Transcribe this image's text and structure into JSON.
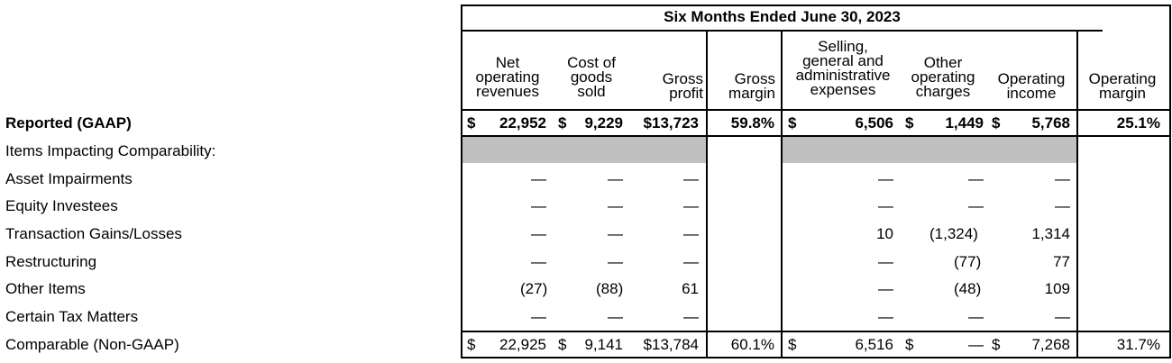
{
  "title": "Six Months Ended June 30, 2023",
  "columns": {
    "net_operating_revenues": [
      "Net",
      "operating",
      "revenues"
    ],
    "cost_of_goods_sold": [
      "Cost of",
      "goods",
      "sold"
    ],
    "gross_profit": [
      "Gross",
      "profit"
    ],
    "gross_margin": [
      "Gross",
      "margin"
    ],
    "sga": [
      "Selling,",
      "general and",
      "administrative",
      "expenses"
    ],
    "other_operating_charges": [
      "Other",
      "operating",
      "charges"
    ],
    "operating_income": [
      "Operating",
      "income"
    ],
    "operating_margin": [
      "Operating",
      "margin"
    ]
  },
  "currency": "$",
  "rows": [
    {
      "label": "Reported (GAAP)",
      "bold": true,
      "nor": "22,952",
      "cogs": "9,229",
      "gp": "$13,723",
      "gm": "59.8%",
      "sga": "6,506",
      "ooc": "1,449",
      "oi": "5,768",
      "om": "25.1%"
    },
    {
      "label": "Items Impacting Comparability:"
    },
    {
      "label": "Asset Impairments",
      "nor": "—",
      "cogs": "—",
      "gp": "—",
      "sga": "—",
      "ooc": "—",
      "oi": "—"
    },
    {
      "label": "Equity Investees",
      "nor": "—",
      "cogs": "—",
      "gp": "—",
      "sga": "—",
      "ooc": "—",
      "oi": "—"
    },
    {
      "label": "Transaction Gains/Losses",
      "nor": "—",
      "cogs": "—",
      "gp": "—",
      "sga": "10",
      "ooc": "(1,324)",
      "oi": "1,314"
    },
    {
      "label": "Restructuring",
      "nor": "—",
      "cogs": "—",
      "gp": "—",
      "sga": "—",
      "ooc": "(77)",
      "oi": "77"
    },
    {
      "label": "Other Items",
      "nor": "(27)",
      "cogs": "(88)",
      "gp": "61",
      "sga": "—",
      "ooc": "(48)",
      "oi": "109"
    },
    {
      "label": "Certain Tax Matters",
      "nor": "—",
      "cogs": "—",
      "gp": "—",
      "sga": "—",
      "ooc": "—",
      "oi": "—"
    },
    {
      "label": "Comparable (Non-GAAP)",
      "nor": "22,925",
      "cogs": "9,141",
      "gp": "$13,784",
      "gm": "60.1%",
      "sga": "6,516",
      "ooc": "—",
      "oi": "7,268",
      "om": "31.7%"
    }
  ]
}
